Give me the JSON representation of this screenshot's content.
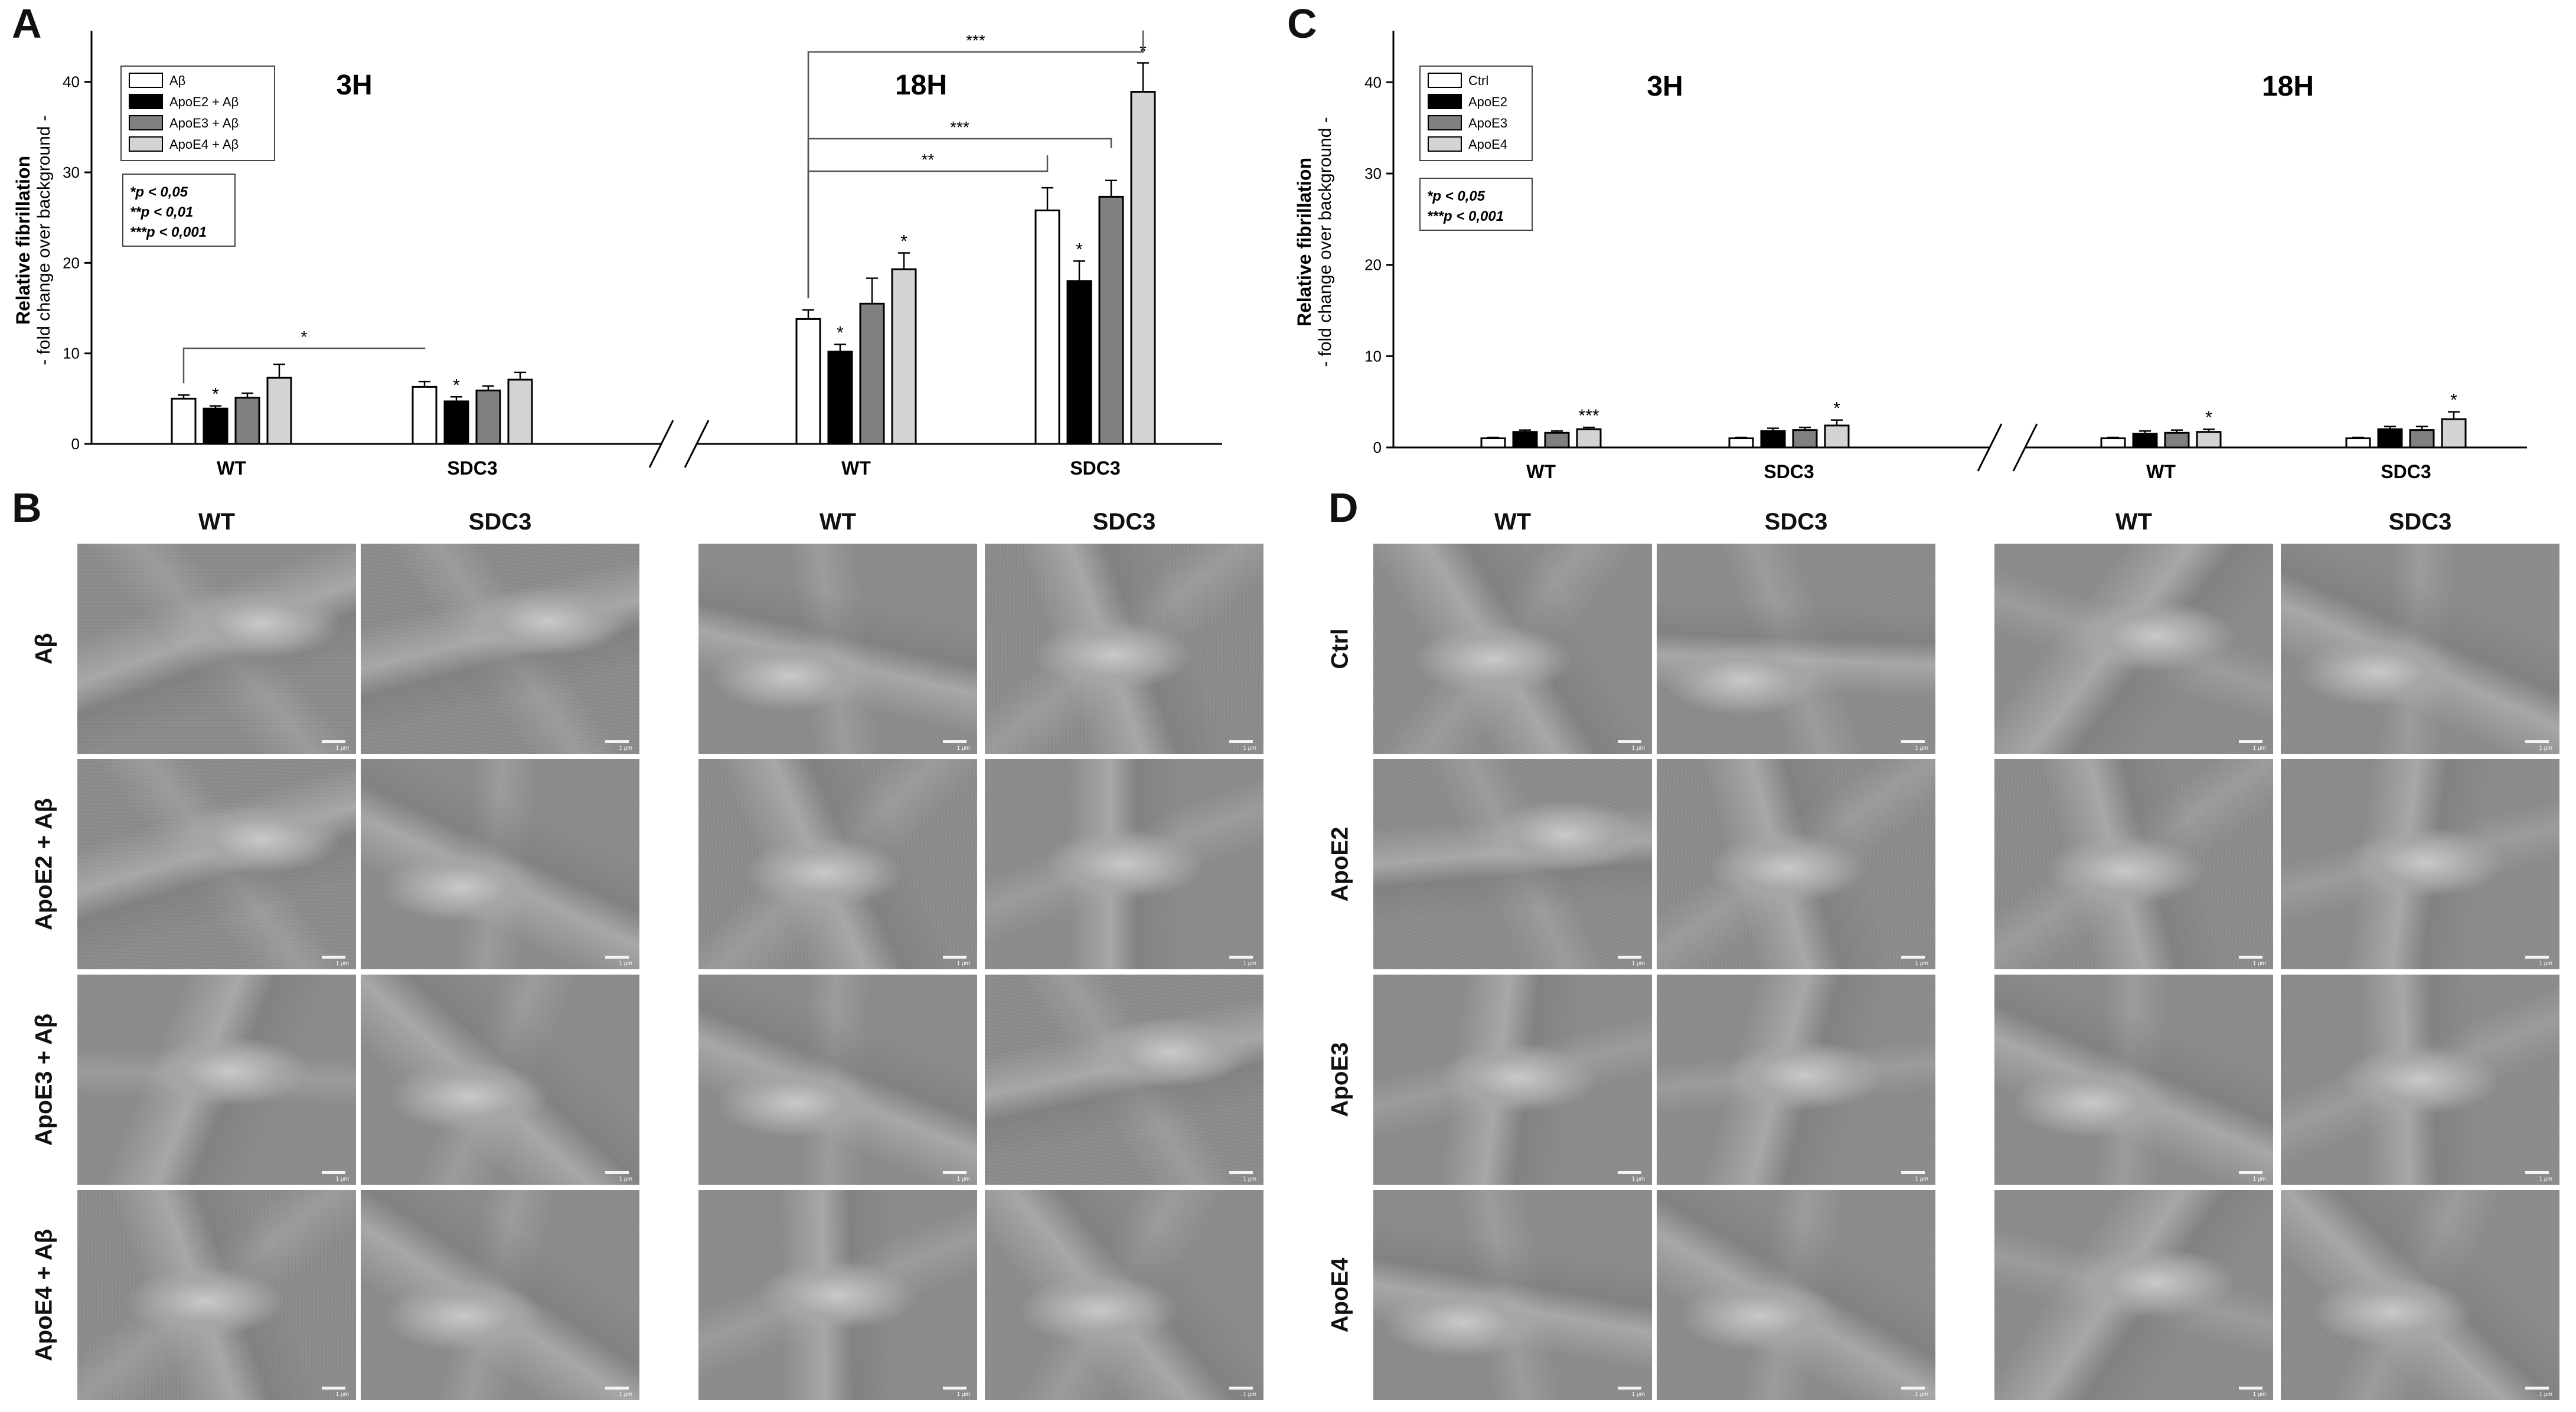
{
  "chart_data": [
    {
      "panel": "A",
      "type": "bar",
      "ylabel": "Relative fibrillation",
      "ylabel2": "- fold change over background -",
      "ylim": [
        0,
        45
      ],
      "yticks": [
        0,
        10,
        20,
        30,
        40
      ],
      "groups": [
        "3H",
        "18H"
      ],
      "categories": [
        "WT",
        "SDC3"
      ],
      "series": [
        {
          "name": "Aβ",
          "color": "#ffffff",
          "values": [
            [
              5.0,
              6.3
            ],
            [
              13.8,
              25.8
            ]
          ],
          "err": [
            [
              0.4,
              0.6
            ],
            [
              1.0,
              2.5
            ]
          ]
        },
        {
          "name": "ApoE2 + Aβ",
          "color": "#000000",
          "values": [
            [
              3.9,
              4.7
            ],
            [
              10.2,
              18.0
            ]
          ],
          "err": [
            [
              0.3,
              0.5
            ],
            [
              0.8,
              2.2
            ]
          ]
        },
        {
          "name": "ApoE3 + Aβ",
          "color": "#808080",
          "values": [
            [
              5.1,
              5.9
            ],
            [
              15.5,
              27.3
            ]
          ],
          "err": [
            [
              0.5,
              0.5
            ],
            [
              2.8,
              1.8
            ]
          ]
        },
        {
          "name": "ApoE4 + Aβ",
          "color": "#d4d4d4",
          "values": [
            [
              7.3,
              7.1
            ],
            [
              19.3,
              38.9
            ]
          ],
          "err": [
            [
              1.5,
              0.8
            ],
            [
              1.8,
              3.2
            ]
          ]
        }
      ],
      "bar_stars": [
        [
          "",
          "*",
          "",
          ""
        ],
        [
          "",
          "*",
          "",
          ""
        ],
        [
          "",
          "*",
          "",
          "*"
        ],
        [
          "",
          "*",
          "",
          "*"
        ]
      ],
      "stats_legend": [
        "*p < 0,05",
        "**p < 0,01",
        "***p < 0,001"
      ],
      "comparisons": [
        {
          "group": 0,
          "from": [
            0,
            0
          ],
          "to": [
            1,
            0
          ],
          "label": "*"
        },
        {
          "group": 1,
          "from": [
            0,
            0
          ],
          "to": [
            1,
            0
          ],
          "label": "**"
        },
        {
          "group": 1,
          "from": [
            0,
            0
          ],
          "to": [
            1,
            2
          ],
          "label": "***"
        },
        {
          "group": 1,
          "from": [
            0,
            0
          ],
          "to": [
            1,
            3
          ],
          "label": "***"
        }
      ]
    },
    {
      "panel": "C",
      "type": "bar",
      "ylabel": "Relative fibrillation",
      "ylabel2": "- fold change over background -",
      "ylim": [
        0,
        45
      ],
      "yticks": [
        0,
        10,
        20,
        30,
        40
      ],
      "groups": [
        "3H",
        "18H"
      ],
      "categories": [
        "WT",
        "SDC3"
      ],
      "series": [
        {
          "name": "Ctrl",
          "color": "#ffffff",
          "values": [
            [
              1.0,
              1.0
            ],
            [
              1.0,
              1.0
            ]
          ],
          "err": [
            [
              0.1,
              0.1
            ],
            [
              0.1,
              0.1
            ]
          ]
        },
        {
          "name": "ApoE2",
          "color": "#000000",
          "values": [
            [
              1.7,
              1.8
            ],
            [
              1.5,
              2.0
            ]
          ],
          "err": [
            [
              0.2,
              0.3
            ],
            [
              0.3,
              0.3
            ]
          ]
        },
        {
          "name": "ApoE3",
          "color": "#808080",
          "values": [
            [
              1.6,
              1.9
            ],
            [
              1.6,
              1.9
            ]
          ],
          "err": [
            [
              0.2,
              0.3
            ],
            [
              0.3,
              0.4
            ]
          ]
        },
        {
          "name": "ApoE4",
          "color": "#d4d4d4",
          "values": [
            [
              2.0,
              2.4
            ],
            [
              1.7,
              3.1
            ]
          ],
          "err": [
            [
              0.2,
              0.6
            ],
            [
              0.3,
              0.8
            ]
          ]
        }
      ],
      "bar_stars": [
        [
          "",
          "",
          "",
          "***"
        ],
        [
          "",
          "",
          "",
          "*"
        ],
        [
          "",
          "",
          "",
          "*"
        ],
        [
          "",
          "",
          "",
          "*"
        ]
      ],
      "stats_legend": [
        "*p < 0,05",
        "***p < 0,001"
      ],
      "comparisons": []
    }
  ],
  "panel_letters": {
    "a": "A",
    "b": "B",
    "c": "C",
    "d": "D"
  },
  "micrographs": {
    "b": {
      "cols": [
        "WT",
        "SDC3",
        "WT",
        "SDC3"
      ],
      "rows": [
        "Aβ",
        "ApoE2 + Aβ",
        "ApoE3 + Aβ",
        "ApoE4 + Aβ"
      ]
    },
    "d": {
      "cols": [
        "WT",
        "SDC3",
        "WT",
        "SDC3"
      ],
      "rows": [
        "Ctrl",
        "ApoE2",
        "ApoE3",
        "ApoE4"
      ]
    },
    "scale_label": "1 μm"
  }
}
